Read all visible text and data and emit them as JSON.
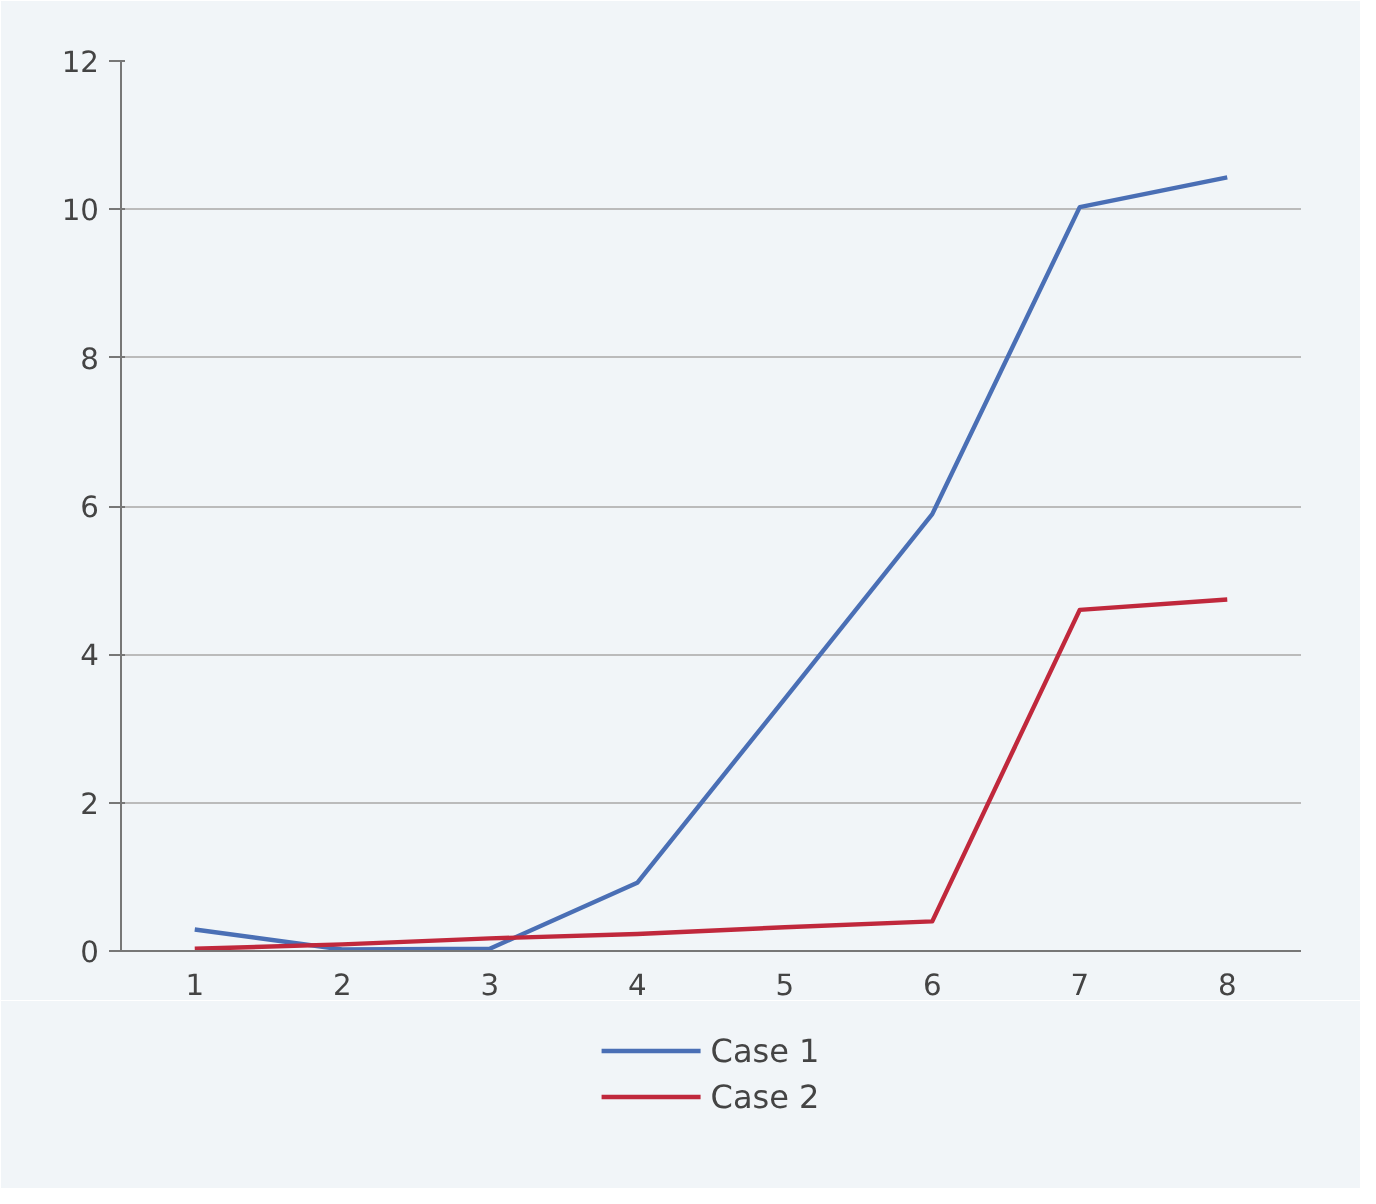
{
  "chart_data": {
    "type": "line",
    "categories": [
      "1",
      "2",
      "3",
      "4",
      "5",
      "6",
      "7",
      "8"
    ],
    "series": [
      {
        "name": "Case 1",
        "color": "#4a6fb5",
        "values": [
          0.29,
          0.02,
          0.03,
          0.92,
          3.4,
          5.89,
          10.03,
          10.43
        ]
      },
      {
        "name": "Case 2",
        "color": "#c0283c",
        "values": [
          0.03,
          0.09,
          0.17,
          0.23,
          0.32,
          0.4,
          4.6,
          4.74
        ]
      }
    ],
    "ylim": [
      0,
      12
    ],
    "yticks": [
      0,
      2,
      4,
      6,
      8,
      10,
      12
    ],
    "grid": "y",
    "legend": "bottom",
    "line_style": "solid"
  }
}
